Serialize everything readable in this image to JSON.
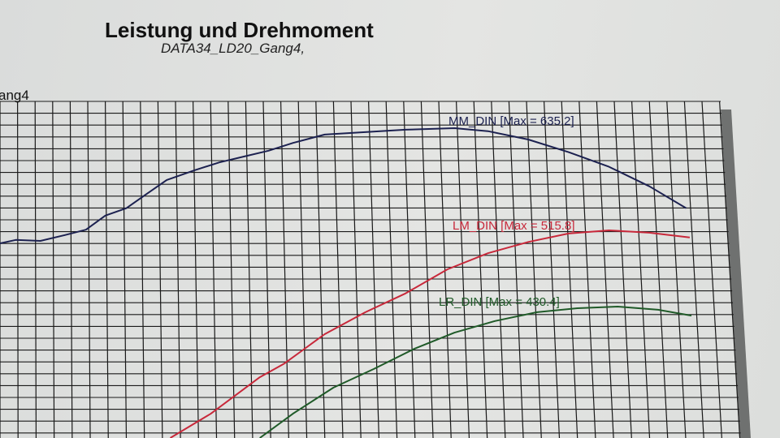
{
  "header": {
    "title": "Leistung und Drehmoment",
    "subtitle": "DATA34_LD20_Gang4,",
    "side_label": "ang4"
  },
  "chart_data": {
    "type": "line",
    "title": "Leistung und Drehmoment",
    "subtitle": "DATA34_LD20_Gang4,",
    "grid": true,
    "series": [
      {
        "name": "MM_DIN [Max = 635.2]",
        "color": "#1c2150",
        "x": [
          0,
          0.9,
          2.3,
          3.7,
          4.9,
          6.0,
          7.2,
          8.3,
          9.5,
          11.1,
          12.5,
          13.9,
          15.3,
          16.7,
          18.5,
          20.8,
          23.1,
          25.9,
          27.8,
          30.1,
          32.4,
          34.7,
          37.0,
          39.1
        ],
        "y": [
          399,
          406,
          404,
          416,
          427,
          456,
          471,
          499,
          529,
          549,
          565,
          577,
          589,
          605,
          622,
          627,
          632,
          635.2,
          629,
          612,
          586,
          556,
          516,
          471
        ]
      },
      {
        "name": "LM_DIN [Max = 515.8]",
        "color": "#c8283a",
        "x": [
          9.7,
          12.0,
          14.8,
          16.2,
          18.5,
          20.8,
          23.1,
          25.5,
          27.8,
          30.1,
          32.4,
          34.7,
          37.0,
          39.3
        ],
        "y": [
          0,
          60,
          151,
          185,
          258,
          312,
          359,
          419,
          459,
          487,
          508,
          515.8,
          510,
          498
        ]
      },
      {
        "name": "LR_DIN [Max = 430.4]",
        "color": "#1f5a28",
        "x": [
          14.8,
          16.7,
          19.0,
          21.3,
          23.6,
          25.9,
          28.2,
          30.6,
          32.9,
          35.2,
          37.5,
          39.4
        ],
        "y": [
          0,
          80,
          165,
          226,
          292,
          345,
          383,
          412,
          425,
          430.4,
          420,
          401
        ]
      }
    ]
  }
}
